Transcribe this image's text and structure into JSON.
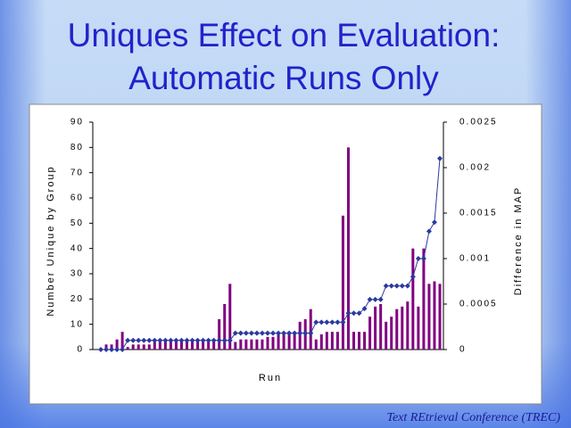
{
  "title": [
    "Uniques Effect on Evaluation:",
    "Automatic Runs Only"
  ],
  "footer": "Text REtrieval Conference (TREC)",
  "chart_data": {
    "type": "bar-line",
    "x_label": "Run",
    "y_label": "Number Unique by Group",
    "y2_label": "Difference in MAP",
    "categories": [
      null,
      null,
      null,
      null,
      null,
      null,
      null,
      null,
      null,
      null,
      null,
      null,
      null,
      null,
      null,
      null,
      null,
      null,
      null,
      null,
      null,
      null,
      null,
      null,
      null,
      null,
      null,
      null,
      null,
      null,
      null,
      null,
      null,
      null,
      null,
      null,
      null,
      null,
      null,
      null,
      null,
      null,
      null,
      null,
      null,
      null,
      null,
      null,
      null,
      null,
      null,
      null,
      null,
      null,
      null,
      null,
      null,
      null,
      null,
      null,
      null,
      null,
      null,
      null
    ],
    "ylim": [
      0,
      90
    ],
    "yticks": [
      0,
      10,
      20,
      30,
      40,
      50,
      60,
      70,
      80,
      90
    ],
    "y2lim": [
      0,
      0.0025
    ],
    "y2ticks": [
      0,
      0.0005,
      0.001,
      0.0015,
      0.002,
      0.0025
    ],
    "series": [
      {
        "name": "Number Unique by Group",
        "type": "bar",
        "color": "#800080",
        "values": [
          0,
          2,
          2,
          4,
          7,
          1,
          2,
          2,
          2,
          2,
          3,
          3,
          3,
          3,
          3,
          3,
          3,
          3,
          3,
          3,
          3,
          3,
          12,
          18,
          26,
          3,
          4,
          4,
          4,
          4,
          4,
          5,
          5,
          6,
          6,
          6,
          6,
          11,
          12,
          16,
          4,
          6,
          7,
          7,
          7,
          53,
          80,
          7,
          7,
          7,
          13,
          17,
          18,
          11,
          13,
          16,
          17,
          19,
          40,
          17,
          40,
          26,
          27,
          26
        ]
      },
      {
        "name": "Difference in MAP",
        "type": "line",
        "axis": "y2",
        "color": "#2b3a9e",
        "values": [
          0,
          0,
          0,
          0,
          0,
          0.0001,
          0.0001,
          0.0001,
          0.0001,
          0.0001,
          0.0001,
          0.0001,
          0.0001,
          0.0001,
          0.0001,
          0.0001,
          0.0001,
          0.0001,
          0.0001,
          0.0001,
          0.0001,
          0.0001,
          0.0001,
          0.0001,
          0.0001,
          0.00018,
          0.00018,
          0.00018,
          0.00018,
          0.00018,
          0.00018,
          0.00018,
          0.00018,
          0.00018,
          0.00018,
          0.00018,
          0.00018,
          0.00018,
          0.00018,
          0.00018,
          0.0003,
          0.0003,
          0.0003,
          0.0003,
          0.0003,
          0.0003,
          0.0004,
          0.0004,
          0.0004,
          0.00045,
          0.00055,
          0.00055,
          0.00055,
          0.0007,
          0.0007,
          0.0007,
          0.0007,
          0.0007,
          0.0008,
          0.001,
          0.001,
          0.0013,
          0.0014,
          0.0021
        ]
      }
    ]
  }
}
